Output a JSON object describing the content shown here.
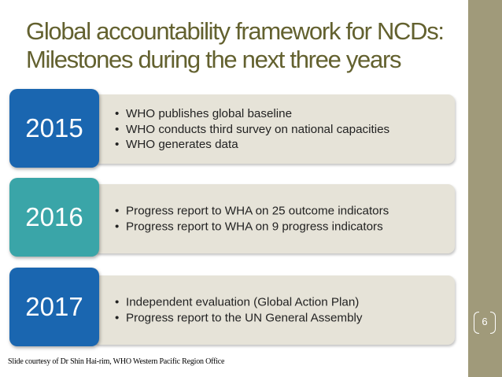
{
  "slide": {
    "title_line1": "Global accountability framework for NCDs:",
    "title_line2": "Milestones during the next three years",
    "page_number": "6",
    "credit": "Slide courtesy of Dr Shin Hai-rim, WHO Western Pacific Region Office"
  },
  "milestones": [
    {
      "year": "2015",
      "color": "#1a66b0",
      "items": [
        "WHO publishes global baseline",
        "WHO conducts third survey on national capacities",
        "WHO generates data"
      ]
    },
    {
      "year": "2016",
      "color": "#3aa5a8",
      "items": [
        "Progress report to WHA on 25 outcome indicators",
        "Progress report to WHA on 9 progress indicators"
      ]
    },
    {
      "year": "2017",
      "color": "#1a66b0",
      "items": [
        "Independent evaluation (Global Action Plan)",
        "Progress report to the UN General Assembly"
      ]
    }
  ],
  "colors": {
    "title": "#63612f",
    "sidebar": "#a09a7a",
    "bar": "#e6e3d8"
  }
}
